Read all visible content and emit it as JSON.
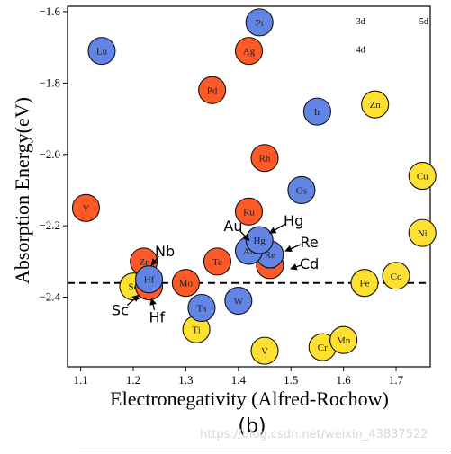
{
  "chart_data": {
    "type": "scatter",
    "xlabel": "Electronegativity (Alfred-Rochow)",
    "ylabel": "Absorption Energy(eV)",
    "xlim": [
      1.075,
      1.765
    ],
    "ylim": [
      -2.595,
      -1.585
    ],
    "xticks": [
      "1.1",
      "1.2",
      "1.3",
      "1.4",
      "1.5",
      "1.6",
      "1.7"
    ],
    "xtick_values": [
      1.1,
      1.2,
      1.3,
      1.4,
      1.5,
      1.6,
      1.7
    ],
    "yticks": [
      "−1.6",
      "−1.8",
      "−2.0",
      "−2.2",
      "−2.4"
    ],
    "ytick_values": [
      -1.6,
      -1.8,
      -2.0,
      -2.2,
      -2.4
    ],
    "reference_line": -2.36,
    "grid": false,
    "legend_position": "top-right",
    "series": [
      {
        "name": "3d",
        "color": "#fde030",
        "points": [
          {
            "label": "Sc",
            "x": 1.2,
            "y": -2.37
          },
          {
            "label": "Ti",
            "x": 1.32,
            "y": -2.49
          },
          {
            "label": "V",
            "x": 1.45,
            "y": -2.55
          },
          {
            "label": "Cr",
            "x": 1.56,
            "y": -2.54
          },
          {
            "label": "Mn",
            "x": 1.6,
            "y": -2.52
          },
          {
            "label": "Fe",
            "x": 1.64,
            "y": -2.36
          },
          {
            "label": "Co",
            "x": 1.7,
            "y": -2.34
          },
          {
            "label": "Ni",
            "x": 1.75,
            "y": -2.22
          },
          {
            "label": "Cu",
            "x": 1.75,
            "y": -2.06
          },
          {
            "label": "Zn",
            "x": 1.66,
            "y": -1.86
          }
        ]
      },
      {
        "name": "4d",
        "color": "#fd5a27",
        "points": [
          {
            "label": "Y",
            "x": 1.11,
            "y": -2.15
          },
          {
            "label": "Zr",
            "x": 1.22,
            "y": -2.3
          },
          {
            "label": "Nb",
            "x": 1.23,
            "y": -2.37
          },
          {
            "label": "Mo",
            "x": 1.3,
            "y": -2.36
          },
          {
            "label": "Tc",
            "x": 1.36,
            "y": -2.3
          },
          {
            "label": "Ru",
            "x": 1.42,
            "y": -2.16
          },
          {
            "label": "Rh",
            "x": 1.45,
            "y": -2.01
          },
          {
            "label": "Pd",
            "x": 1.35,
            "y": -1.82
          },
          {
            "label": "Ag",
            "x": 1.42,
            "y": -1.71
          },
          {
            "label": "Cd",
            "x": 1.46,
            "y": -2.31
          }
        ]
      },
      {
        "name": "5d",
        "color": "#6184e5",
        "points": [
          {
            "label": "Lu",
            "x": 1.14,
            "y": -1.71
          },
          {
            "label": "Hf",
            "x": 1.23,
            "y": -2.35
          },
          {
            "label": "Ta",
            "x": 1.33,
            "y": -2.43
          },
          {
            "label": "W",
            "x": 1.4,
            "y": -2.41
          },
          {
            "label": "Re",
            "x": 1.46,
            "y": -2.28
          },
          {
            "label": "Os",
            "x": 1.52,
            "y": -2.1
          },
          {
            "label": "Ir",
            "x": 1.55,
            "y": -1.88
          },
          {
            "label": "Pt",
            "x": 1.44,
            "y": -1.63
          },
          {
            "label": "Au",
            "x": 1.42,
            "y": -2.27
          },
          {
            "label": "Hg",
            "x": 1.44,
            "y": -2.24
          }
        ]
      }
    ],
    "annotations": [
      {
        "text": "Au",
        "x": 1.39,
        "y": -2.2,
        "arrow_to": [
          1.42,
          -2.24
        ]
      },
      {
        "text": "Hg",
        "x": 1.505,
        "y": -2.185,
        "arrow_to": [
          1.46,
          -2.22
        ]
      },
      {
        "text": "Re",
        "x": 1.535,
        "y": -2.245,
        "arrow_to": [
          1.49,
          -2.27
        ]
      },
      {
        "text": "Cd",
        "x": 1.535,
        "y": -2.305,
        "arrow_to": [
          1.5,
          -2.32
        ]
      },
      {
        "text": "Nb",
        "x": 1.26,
        "y": -2.27,
        "arrow_to": [
          1.235,
          -2.31
        ]
      },
      {
        "text": "Sc",
        "x": 1.175,
        "y": -2.435,
        "arrow_to": [
          1.21,
          -2.395
        ]
      },
      {
        "text": "Hf",
        "x": 1.245,
        "y": -2.455,
        "arrow_to": [
          1.235,
          -2.405
        ]
      }
    ],
    "panel_label": "(b)"
  },
  "watermark": "https://blog.csdn.net/weixin_43837522"
}
